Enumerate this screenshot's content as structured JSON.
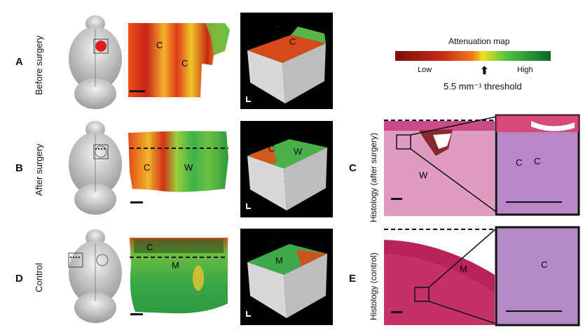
{
  "rows": [
    {
      "letter": "A",
      "label": "Before surgery",
      "heat_labels": [
        "C",
        "C"
      ],
      "cube_labels": [
        "C",
        "C"
      ]
    },
    {
      "letter": "B",
      "label": "After surgery",
      "heat_labels": [
        "C",
        "W"
      ],
      "cube_labels": [
        "C",
        "W"
      ]
    },
    {
      "letter": "D",
      "label": "Control",
      "heat_labels": [
        "C",
        "M"
      ],
      "cube_labels": [
        "C",
        "M"
      ]
    }
  ],
  "colorbar": {
    "title": "Attenuation map",
    "low": "Low",
    "high": "High",
    "threshold": "5.5 mm⁻¹ threshold",
    "colors": [
      "#7a0d0d",
      "#c62a14",
      "#ef7a1c",
      "#f1e320",
      "#4fbf3f",
      "#0a6a2b"
    ]
  },
  "histology": [
    {
      "letter": "C",
      "label": "Histology (after surgery)",
      "labels": [
        "W",
        "C",
        "C"
      ]
    },
    {
      "letter": "E",
      "label": "Histology (control)",
      "labels": [
        "M",
        "C"
      ]
    }
  ]
}
